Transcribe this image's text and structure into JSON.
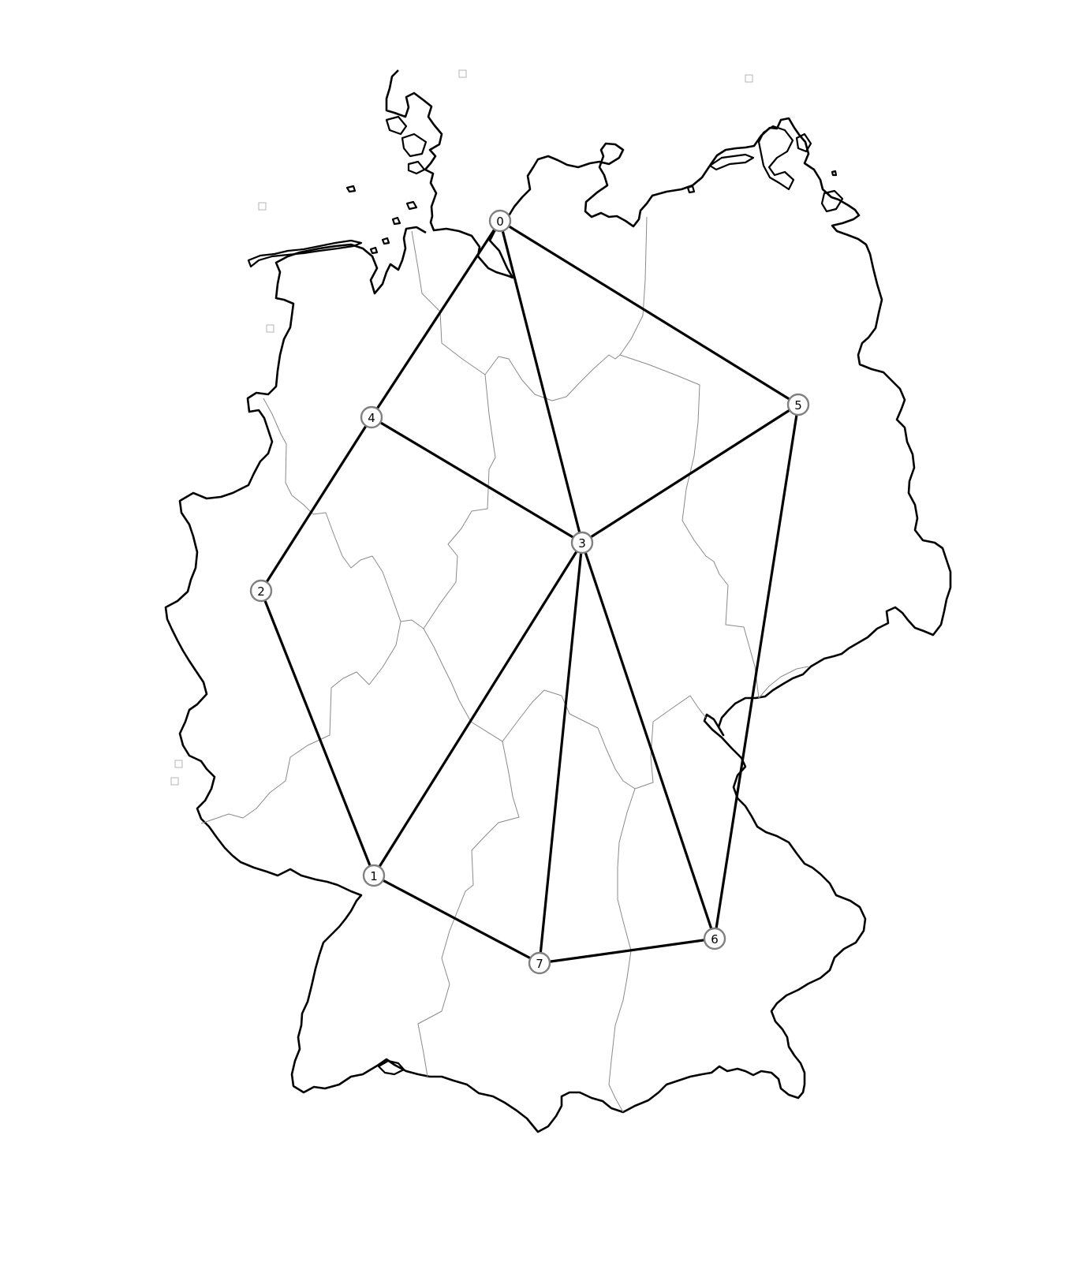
{
  "map": {
    "colors": {
      "coastline": "#000000",
      "state_borders": "#8a8a8a",
      "edges": "#000000",
      "node_stroke": "#808080",
      "node_fill": "#ffffff"
    },
    "graph": {
      "nodes": [
        {
          "id": "0",
          "label": "0"
        },
        {
          "id": "1",
          "label": "1"
        },
        {
          "id": "2",
          "label": "2"
        },
        {
          "id": "3",
          "label": "3"
        },
        {
          "id": "4",
          "label": "4"
        },
        {
          "id": "5",
          "label": "5"
        },
        {
          "id": "6",
          "label": "6"
        },
        {
          "id": "7",
          "label": "7"
        }
      ],
      "edges": [
        [
          "0",
          "4"
        ],
        [
          "0",
          "3"
        ],
        [
          "0",
          "5"
        ],
        [
          "4",
          "3"
        ],
        [
          "4",
          "2"
        ],
        [
          "5",
          "3"
        ],
        [
          "5",
          "6"
        ],
        [
          "2",
          "1"
        ],
        [
          "3",
          "1"
        ],
        [
          "3",
          "7"
        ],
        [
          "3",
          "6"
        ],
        [
          "1",
          "7"
        ],
        [
          "7",
          "6"
        ]
      ]
    }
  }
}
